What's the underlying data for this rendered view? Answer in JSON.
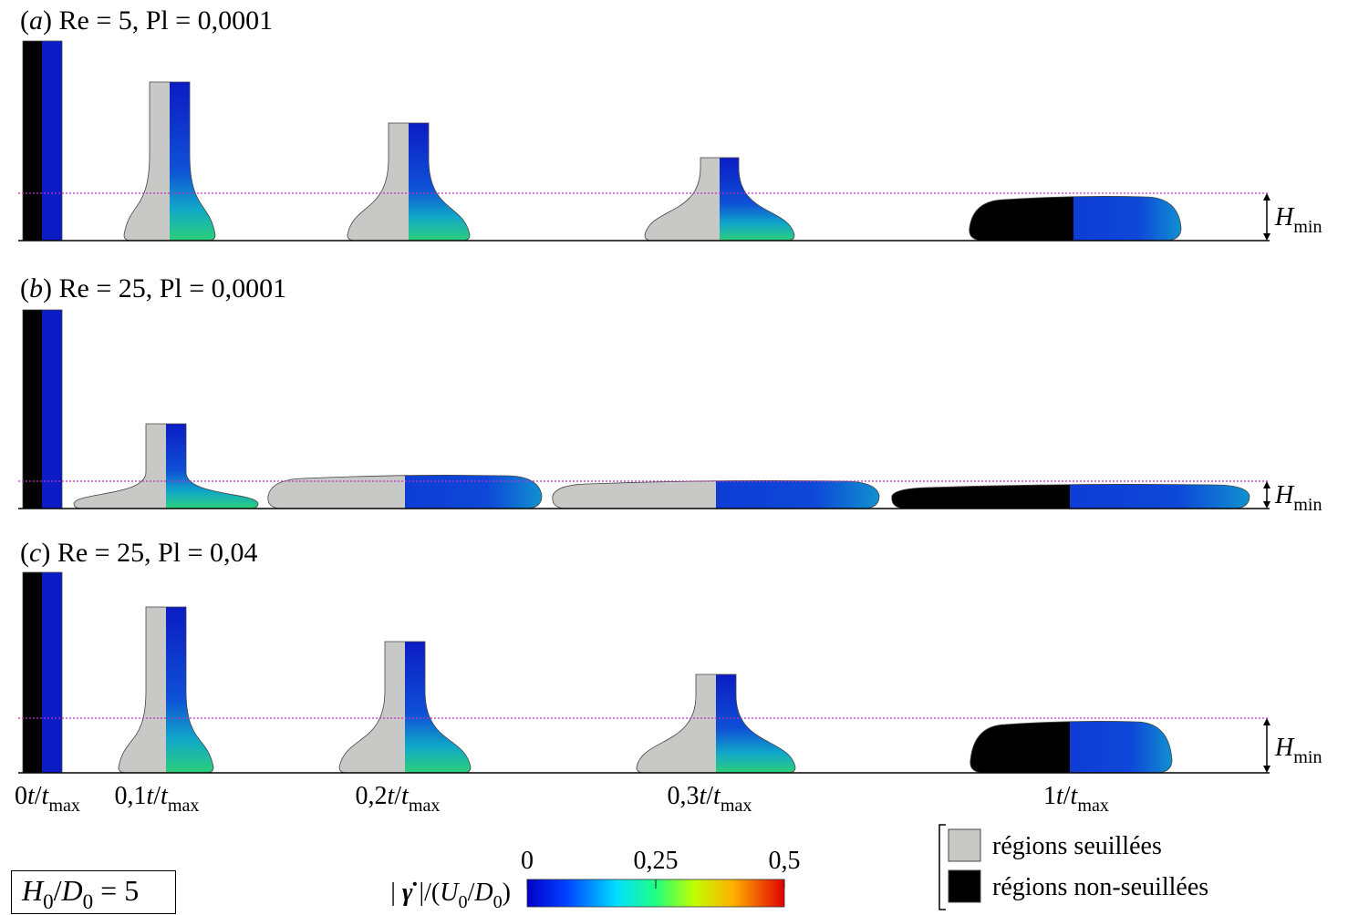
{
  "panels": [
    {
      "title": [
        {
          "text": "(",
          "style": "normal"
        },
        {
          "text": "a",
          "style": "italic"
        },
        {
          "text": ") Re = 5, Pl = 0,0001",
          "style": "normal"
        }
      ],
      "hmin": [
        {
          "text": "H",
          "style": "italic"
        },
        {
          "text": "min",
          "style": "sub"
        }
      ]
    },
    {
      "title": [
        {
          "text": "(",
          "style": "normal"
        },
        {
          "text": "b",
          "style": "italic"
        },
        {
          "text": ") Re = 25, Pl = 0,0001",
          "style": "normal"
        }
      ],
      "hmin": [
        {
          "text": "H",
          "style": "italic"
        },
        {
          "text": "min",
          "style": "sub"
        }
      ]
    },
    {
      "title": [
        {
          "text": "(",
          "style": "normal"
        },
        {
          "text": "c",
          "style": "italic"
        },
        {
          "text": ") Re = 25, Pl = 0,04",
          "style": "normal"
        }
      ],
      "hmin": [
        {
          "text": "H",
          "style": "italic"
        },
        {
          "text": "min",
          "style": "sub"
        }
      ]
    }
  ],
  "time_labels": [
    [
      {
        "text": "0",
        "style": "normal"
      },
      {
        "text": "t",
        "style": "italic"
      },
      {
        "text": "/",
        "style": "normal"
      },
      {
        "text": "t",
        "style": "italic"
      },
      {
        "text": "max",
        "style": "sub"
      }
    ],
    [
      {
        "text": "0,1",
        "style": "normal"
      },
      {
        "text": "t",
        "style": "italic"
      },
      {
        "text": "/",
        "style": "normal"
      },
      {
        "text": "t",
        "style": "italic"
      },
      {
        "text": "max",
        "style": "sub"
      }
    ],
    [
      {
        "text": "0,2",
        "style": "normal"
      },
      {
        "text": "t",
        "style": "italic"
      },
      {
        "text": "/",
        "style": "normal"
      },
      {
        "text": "t",
        "style": "italic"
      },
      {
        "text": "max",
        "style": "sub"
      }
    ],
    [
      {
        "text": "0,3",
        "style": "normal"
      },
      {
        "text": "t",
        "style": "italic"
      },
      {
        "text": "/",
        "style": "normal"
      },
      {
        "text": "t",
        "style": "italic"
      },
      {
        "text": "max",
        "style": "sub"
      }
    ],
    [
      {
        "text": "1",
        "style": "normal"
      },
      {
        "text": "t",
        "style": "italic"
      },
      {
        "text": "/",
        "style": "normal"
      },
      {
        "text": "t",
        "style": "italic"
      },
      {
        "text": "max",
        "style": "sub"
      }
    ]
  ],
  "ratio_box": [
    {
      "text": "H",
      "style": "italic"
    },
    {
      "text": "0",
      "style": "sub"
    },
    {
      "text": "/",
      "style": "normal"
    },
    {
      "text": "D",
      "style": "italic"
    },
    {
      "text": "0",
      "style": "sub"
    },
    {
      "text": " = 5",
      "style": "normal"
    }
  ],
  "colorbar": {
    "label": [
      {
        "text": "| ",
        "style": "normal"
      },
      {
        "text": "γ̇",
        "style": "bolditalic"
      },
      {
        "text": " |/(",
        "style": "normal"
      },
      {
        "text": "U",
        "style": "italic"
      },
      {
        "text": "0",
        "style": "sub"
      },
      {
        "text": "/",
        "style": "normal"
      },
      {
        "text": "D",
        "style": "italic"
      },
      {
        "text": "0",
        "style": "sub"
      },
      {
        "text": ")",
        "style": "normal"
      }
    ],
    "range": [
      0,
      0.5
    ],
    "ticks": [
      0,
      {
        "value": 0.25,
        "label": "0,25"
      },
      {
        "value": 0.5,
        "label": "0,5"
      }
    ]
  },
  "legend": [
    {
      "label": "régions seuillées",
      "color": "#c8c8c6"
    },
    {
      "label": "régions non-seuillées",
      "color": "#000000"
    }
  ]
}
